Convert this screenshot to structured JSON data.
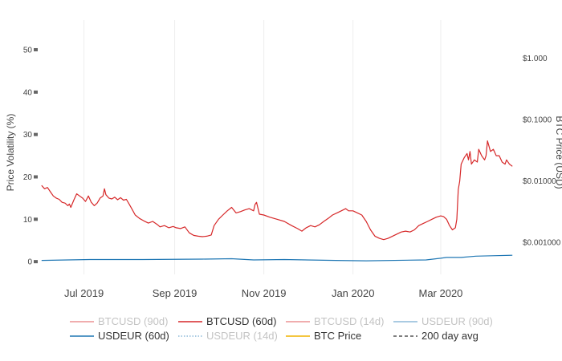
{
  "chart_data": {
    "type": "line",
    "title": "",
    "ylabel": "Price Volatility (%)",
    "y2label": "BTC Price (USD)",
    "xlabel": "",
    "ylim": [
      -3,
      57
    ],
    "y_ticks": [
      0,
      10,
      20,
      30,
      40,
      50
    ],
    "y_tick_labels": [
      "0",
      "10",
      "20",
      "30",
      "40",
      "50"
    ],
    "y2_scale": "log",
    "y2lim": [
      0.0003,
      4.2
    ],
    "y2_ticks": [
      0.001,
      0.01,
      0.1,
      1
    ],
    "y2_tick_labels": [
      "$0.001000",
      "$0.01000",
      "$0.1000",
      "$1.000"
    ],
    "x_range": [
      "2019-06-01",
      "2020-04-20"
    ],
    "x_ticks": [
      "2019-07-01",
      "2019-09-01",
      "2019-11-01",
      "2020-01-01",
      "2020-03-01"
    ],
    "x_tick_labels": [
      "Jul 2019",
      "Sep 2019",
      "Nov 2019",
      "Jan 2020",
      "Mar 2020"
    ],
    "grid": "vertical",
    "legend_position": "bottom",
    "series": [
      {
        "name": "BTCUSD (60d)",
        "color": "#d62728",
        "visible": true,
        "points": [
          [
            "2019-06-02",
            18.0
          ],
          [
            "2019-06-04",
            17.2
          ],
          [
            "2019-06-06",
            17.5
          ],
          [
            "2019-06-08",
            16.5
          ],
          [
            "2019-06-10",
            15.5
          ],
          [
            "2019-06-12",
            15.0
          ],
          [
            "2019-06-14",
            14.7
          ],
          [
            "2019-06-16",
            14.0
          ],
          [
            "2019-06-18",
            13.8
          ],
          [
            "2019-06-20",
            13.2
          ],
          [
            "2019-06-21",
            13.6
          ],
          [
            "2019-06-22",
            12.8
          ],
          [
            "2019-06-24",
            14.5
          ],
          [
            "2019-06-26",
            16.0
          ],
          [
            "2019-06-28",
            15.5
          ],
          [
            "2019-06-30",
            15.0
          ],
          [
            "2019-07-02",
            14.2
          ],
          [
            "2019-07-04",
            15.5
          ],
          [
            "2019-07-06",
            14.0
          ],
          [
            "2019-07-08",
            13.2
          ],
          [
            "2019-07-10",
            13.8
          ],
          [
            "2019-07-12",
            15.0
          ],
          [
            "2019-07-14",
            15.5
          ],
          [
            "2019-07-15",
            17.2
          ],
          [
            "2019-07-16",
            15.8
          ],
          [
            "2019-07-18",
            15.0
          ],
          [
            "2019-07-20",
            14.8
          ],
          [
            "2019-07-22",
            15.2
          ],
          [
            "2019-07-24",
            14.6
          ],
          [
            "2019-07-26",
            15.1
          ],
          [
            "2019-07-28",
            14.5
          ],
          [
            "2019-07-30",
            14.7
          ],
          [
            "2019-08-01",
            13.5
          ],
          [
            "2019-08-03",
            12.3
          ],
          [
            "2019-08-05",
            11.0
          ],
          [
            "2019-08-08",
            10.2
          ],
          [
            "2019-08-11",
            9.6
          ],
          [
            "2019-08-14",
            9.1
          ],
          [
            "2019-08-17",
            9.5
          ],
          [
            "2019-08-20",
            8.8
          ],
          [
            "2019-08-22",
            8.2
          ],
          [
            "2019-08-25",
            8.5
          ],
          [
            "2019-08-28",
            8.0
          ],
          [
            "2019-08-31",
            8.3
          ],
          [
            "2019-09-02",
            8.0
          ],
          [
            "2019-09-05",
            7.8
          ],
          [
            "2019-09-08",
            8.2
          ],
          [
            "2019-09-11",
            6.8
          ],
          [
            "2019-09-14",
            6.2
          ],
          [
            "2019-09-17",
            6.0
          ],
          [
            "2019-09-20",
            5.9
          ],
          [
            "2019-09-23",
            6.0
          ],
          [
            "2019-09-26",
            6.3
          ],
          [
            "2019-09-28",
            8.5
          ],
          [
            "2019-10-01",
            10.0
          ],
          [
            "2019-10-04",
            11.0
          ],
          [
            "2019-10-07",
            12.0
          ],
          [
            "2019-10-10",
            12.8
          ],
          [
            "2019-10-13",
            11.5
          ],
          [
            "2019-10-16",
            11.8
          ],
          [
            "2019-10-19",
            12.2
          ],
          [
            "2019-10-22",
            12.5
          ],
          [
            "2019-10-25",
            12.0
          ],
          [
            "2019-10-26",
            13.5
          ],
          [
            "2019-10-27",
            14.0
          ],
          [
            "2019-10-29",
            11.2
          ],
          [
            "2019-11-01",
            11.0
          ],
          [
            "2019-11-05",
            10.5
          ],
          [
            "2019-11-10",
            10.0
          ],
          [
            "2019-11-15",
            9.5
          ],
          [
            "2019-11-20",
            8.5
          ],
          [
            "2019-11-24",
            7.8
          ],
          [
            "2019-11-27",
            7.2
          ],
          [
            "2019-11-30",
            8.0
          ],
          [
            "2019-12-03",
            8.5
          ],
          [
            "2019-12-06",
            8.2
          ],
          [
            "2019-12-09",
            8.7
          ],
          [
            "2019-12-12",
            9.5
          ],
          [
            "2019-12-15",
            10.2
          ],
          [
            "2019-12-18",
            11.0
          ],
          [
            "2019-12-21",
            11.5
          ],
          [
            "2019-12-24",
            12.0
          ],
          [
            "2019-12-27",
            12.5
          ],
          [
            "2019-12-29",
            12.0
          ],
          [
            "2020-01-01",
            12.0
          ],
          [
            "2020-01-04",
            11.5
          ],
          [
            "2020-01-07",
            11.0
          ],
          [
            "2020-01-10",
            9.5
          ],
          [
            "2020-01-13",
            7.5
          ],
          [
            "2020-01-16",
            6.0
          ],
          [
            "2020-01-19",
            5.5
          ],
          [
            "2020-01-22",
            5.2
          ],
          [
            "2020-01-25",
            5.5
          ],
          [
            "2020-01-28",
            6.0
          ],
          [
            "2020-01-31",
            6.5
          ],
          [
            "2020-02-03",
            7.0
          ],
          [
            "2020-02-06",
            7.2
          ],
          [
            "2020-02-09",
            7.0
          ],
          [
            "2020-02-12",
            7.5
          ],
          [
            "2020-02-15",
            8.5
          ],
          [
            "2020-02-18",
            9.0
          ],
          [
            "2020-02-21",
            9.5
          ],
          [
            "2020-02-24",
            10.0
          ],
          [
            "2020-02-27",
            10.5
          ],
          [
            "2020-03-01",
            10.8
          ],
          [
            "2020-03-03",
            10.6
          ],
          [
            "2020-03-05",
            10.0
          ],
          [
            "2020-03-07",
            8.5
          ],
          [
            "2020-03-09",
            7.5
          ],
          [
            "2020-03-11",
            8.0
          ],
          [
            "2020-03-12",
            10.0
          ],
          [
            "2020-03-13",
            17.0
          ],
          [
            "2020-03-14",
            19.0
          ],
          [
            "2020-03-15",
            23.0
          ],
          [
            "2020-03-17",
            24.5
          ],
          [
            "2020-03-19",
            25.5
          ],
          [
            "2020-03-20",
            24.0
          ],
          [
            "2020-03-21",
            26.0
          ],
          [
            "2020-03-22",
            23.0
          ],
          [
            "2020-03-24",
            24.0
          ],
          [
            "2020-03-26",
            23.5
          ],
          [
            "2020-03-27",
            26.5
          ],
          [
            "2020-03-29",
            25.0
          ],
          [
            "2020-03-31",
            24.0
          ],
          [
            "2020-04-01",
            25.0
          ],
          [
            "2020-04-02",
            28.5
          ],
          [
            "2020-04-04",
            26.0
          ],
          [
            "2020-04-06",
            26.5
          ],
          [
            "2020-04-08",
            25.0
          ],
          [
            "2020-04-10",
            25.0
          ],
          [
            "2020-04-12",
            23.5
          ],
          [
            "2020-04-14",
            23.0
          ],
          [
            "2020-04-15",
            24.0
          ],
          [
            "2020-04-17",
            23.0
          ],
          [
            "2020-04-19",
            22.5
          ]
        ]
      },
      {
        "name": "USDEUR (60d)",
        "color": "#1f77b4",
        "visible": true,
        "points": [
          [
            "2019-06-02",
            0.3
          ],
          [
            "2019-06-20",
            0.4
          ],
          [
            "2019-07-05",
            0.5
          ],
          [
            "2019-08-10",
            0.5
          ],
          [
            "2019-09-20",
            0.6
          ],
          [
            "2019-10-10",
            0.7
          ],
          [
            "2019-10-25",
            0.4
          ],
          [
            "2019-11-15",
            0.5
          ],
          [
            "2019-12-20",
            0.3
          ],
          [
            "2020-01-10",
            0.2
          ],
          [
            "2020-02-20",
            0.4
          ],
          [
            "2020-03-01",
            0.8
          ],
          [
            "2020-03-05",
            1.0
          ],
          [
            "2020-03-15",
            1.0
          ],
          [
            "2020-03-25",
            1.3
          ],
          [
            "2020-04-05",
            1.4
          ],
          [
            "2020-04-19",
            1.5
          ]
        ]
      }
    ],
    "legend": [
      {
        "label": "BTCUSD (90d)",
        "color": "#d62728",
        "visible": false,
        "dash": "solid"
      },
      {
        "label": "BTCUSD (60d)",
        "color": "#d62728",
        "visible": true,
        "dash": "solid"
      },
      {
        "label": "BTCUSD (14d)",
        "color": "#d62728",
        "visible": false,
        "dash": "solid"
      },
      {
        "label": "USDEUR (90d)",
        "color": "#1f77b4",
        "visible": false,
        "dash": "solid"
      },
      {
        "label": "USDEUR (60d)",
        "color": "#1f77b4",
        "visible": true,
        "dash": "solid"
      },
      {
        "label": "USDEUR (14d)",
        "color": "#1f77b4",
        "visible": false,
        "dash": "dot"
      },
      {
        "label": "BTC Price",
        "color": "#f0b400",
        "visible": true,
        "dash": "solid"
      },
      {
        "label": "200 day avg",
        "color": "#555555",
        "visible": true,
        "dash": "dash"
      }
    ]
  }
}
